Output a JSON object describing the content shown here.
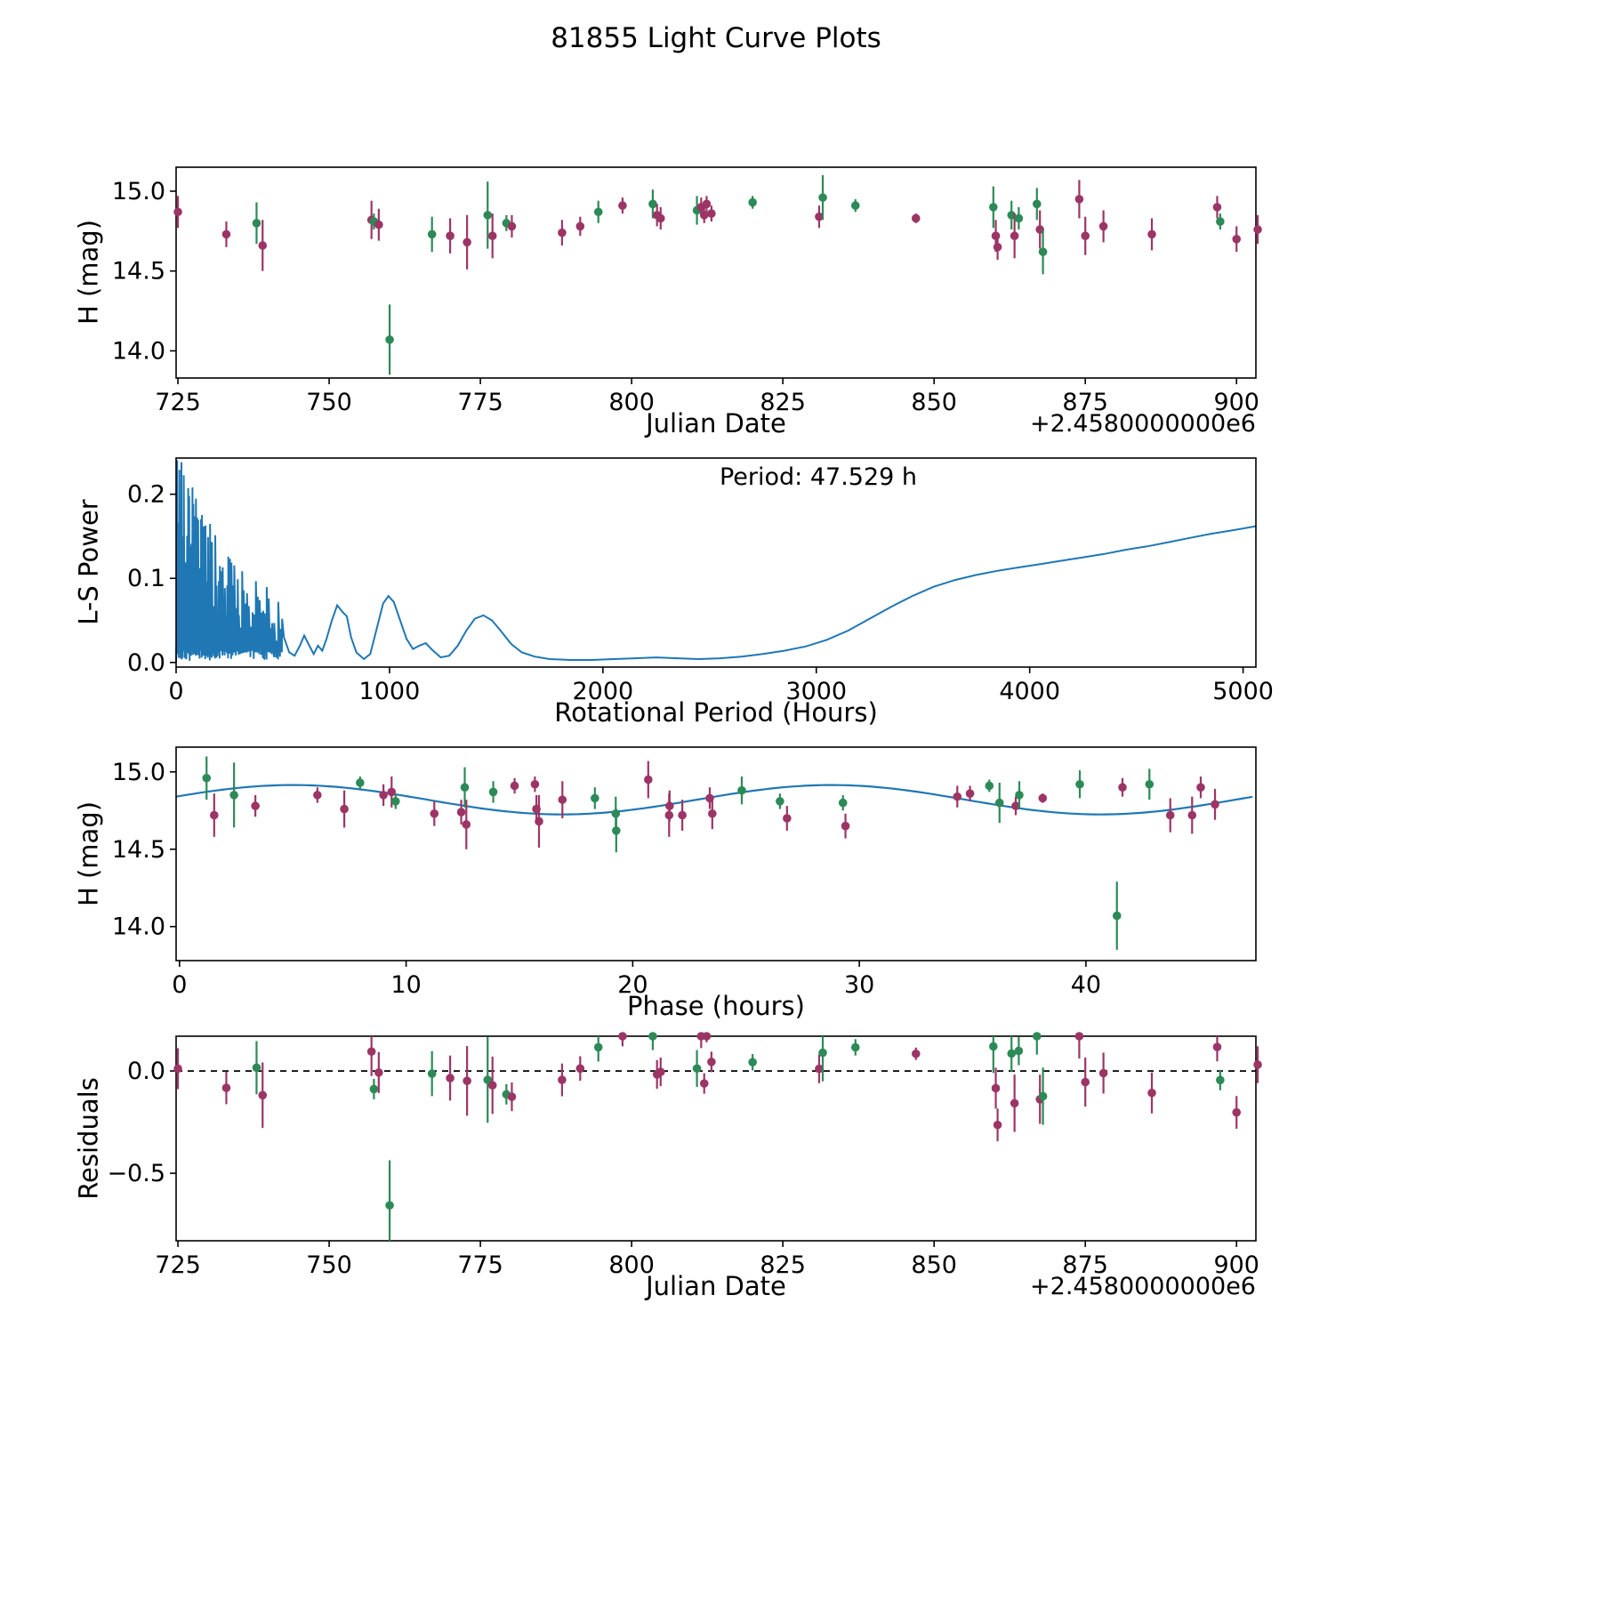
{
  "title": "81855 Light Curve Plots",
  "colors": {
    "green": "#2c8a57",
    "purple": "#9c3566",
    "curve_blue": "#1f77b4",
    "axis": "#000000"
  },
  "panels": {
    "lightcurve": {
      "ylabel": "H (mag)",
      "xlabel": "Julian Date",
      "x_offset_label": "+2.4580000000e6",
      "xlim": [
        724.7,
        903.2
      ],
      "ylim": [
        13.83,
        15.15
      ],
      "xticks": [
        725,
        750,
        775,
        800,
        825,
        850,
        875,
        900
      ],
      "xtick_labels": [
        "725",
        "750",
        "775",
        "800",
        "825",
        "850",
        "875",
        "900"
      ],
      "yticks": [
        14.0,
        14.5,
        15.0
      ],
      "ytick_labels": [
        "14.0",
        "14.5",
        "15.0"
      ]
    },
    "periodogram": {
      "ylabel": "L-S Power",
      "xlabel": "Rotational Period (Hours)",
      "annotation": "Period: 47.529 h",
      "xlim": [
        0,
        5060
      ],
      "ylim": [
        -0.0055,
        0.243
      ],
      "xticks": [
        0,
        1000,
        2000,
        3000,
        4000,
        5000
      ],
      "xtick_labels": [
        "0",
        "1000",
        "2000",
        "3000",
        "4000",
        "5000"
      ],
      "yticks": [
        0.0,
        0.1,
        0.2
      ],
      "ytick_labels": [
        "0.0",
        "0.1",
        "0.2"
      ]
    },
    "phase": {
      "ylabel": "H (mag)",
      "xlabel": "Phase (hours)",
      "xlim": [
        -0.15,
        47.5
      ],
      "ylim": [
        13.78,
        15.16
      ],
      "xticks": [
        0,
        10,
        20,
        30,
        40
      ],
      "xtick_labels": [
        "0",
        "10",
        "20",
        "30",
        "40"
      ],
      "yticks": [
        14.0,
        14.5,
        15.0
      ],
      "ytick_labels": [
        "14.0",
        "14.5",
        "15.0"
      ]
    },
    "residuals": {
      "ylabel": "Residuals",
      "xlabel": "Julian Date",
      "x_offset_label": "+2.4580000000e6",
      "xlim": [
        724.7,
        903.2
      ],
      "ylim": [
        -0.83,
        0.17
      ],
      "xticks": [
        725,
        750,
        775,
        800,
        825,
        850,
        875,
        900
      ],
      "xtick_labels": [
        "725",
        "750",
        "775",
        "800",
        "825",
        "850",
        "875",
        "900"
      ],
      "yticks": [
        0.0,
        -0.5
      ],
      "ytick_labels": [
        "0.0",
        "−0.5"
      ]
    }
  },
  "chart_data": {
    "type": "scatter",
    "object_id": "81855",
    "julian_date_offset": 2458000,
    "period_hours": 47.529,
    "model": {
      "mean_mag": 14.82,
      "amplitude_mag": 0.095,
      "phase_zero_rad": 0.2489,
      "epoch_jd": 724.61,
      "cycles_per_period": 2
    },
    "points_format": [
      "jd_minus_offset",
      "H_mag",
      "err_mag",
      "color g=green p=purple"
    ],
    "points": [
      [
        725.0,
        14.87,
        0.1,
        "p"
      ],
      [
        733.0,
        14.73,
        0.08,
        "p"
      ],
      [
        738.0,
        14.8,
        0.13,
        "g"
      ],
      [
        739.0,
        14.66,
        0.16,
        "p"
      ],
      [
        757.0,
        14.82,
        0.12,
        "p"
      ],
      [
        757.4,
        14.81,
        0.05,
        "g"
      ],
      [
        758.2,
        14.79,
        0.1,
        "p"
      ],
      [
        760.0,
        14.07,
        0.22,
        "g"
      ],
      [
        767.0,
        14.73,
        0.11,
        "g"
      ],
      [
        770.0,
        14.72,
        0.11,
        "p"
      ],
      [
        772.8,
        14.68,
        0.17,
        "p"
      ],
      [
        776.2,
        14.85,
        0.21,
        "g"
      ],
      [
        777.0,
        14.72,
        0.14,
        "p"
      ],
      [
        779.3,
        14.8,
        0.05,
        "g"
      ],
      [
        780.2,
        14.78,
        0.07,
        "p"
      ],
      [
        788.5,
        14.74,
        0.08,
        "p"
      ],
      [
        791.5,
        14.78,
        0.06,
        "p"
      ],
      [
        794.5,
        14.87,
        0.07,
        "g"
      ],
      [
        798.5,
        14.91,
        0.05,
        "p"
      ],
      [
        803.5,
        14.92,
        0.09,
        "g"
      ],
      [
        804.2,
        14.85,
        0.07,
        "p"
      ],
      [
        804.8,
        14.83,
        0.07,
        "p"
      ],
      [
        810.8,
        14.88,
        0.09,
        "g"
      ],
      [
        811.5,
        14.9,
        0.06,
        "p"
      ],
      [
        812.0,
        14.85,
        0.05,
        "p"
      ],
      [
        812.4,
        14.92,
        0.05,
        "p"
      ],
      [
        813.2,
        14.86,
        0.05,
        "p"
      ],
      [
        820.0,
        14.93,
        0.04,
        "g"
      ],
      [
        831.0,
        14.84,
        0.07,
        "p"
      ],
      [
        831.6,
        14.96,
        0.14,
        "g"
      ],
      [
        837.0,
        14.91,
        0.04,
        "g"
      ],
      [
        847.0,
        14.83,
        0.03,
        "p"
      ],
      [
        859.8,
        14.9,
        0.13,
        "g"
      ],
      [
        860.2,
        14.72,
        0.1,
        "p"
      ],
      [
        860.5,
        14.65,
        0.08,
        "p"
      ],
      [
        862.8,
        14.85,
        0.09,
        "g"
      ],
      [
        863.3,
        14.72,
        0.14,
        "p"
      ],
      [
        864.0,
        14.83,
        0.07,
        "g"
      ],
      [
        867.0,
        14.92,
        0.1,
        "g"
      ],
      [
        867.5,
        14.76,
        0.12,
        "p"
      ],
      [
        868.0,
        14.62,
        0.14,
        "g"
      ],
      [
        874.0,
        14.95,
        0.12,
        "p"
      ],
      [
        875.0,
        14.72,
        0.12,
        "p"
      ],
      [
        878.0,
        14.78,
        0.1,
        "p"
      ],
      [
        886.0,
        14.73,
        0.1,
        "p"
      ],
      [
        896.8,
        14.9,
        0.07,
        "p"
      ],
      [
        897.3,
        14.81,
        0.05,
        "g"
      ],
      [
        900.0,
        14.7,
        0.08,
        "p"
      ],
      [
        903.5,
        14.76,
        0.09,
        "p"
      ]
    ],
    "periodogram_noise": {
      "x_max": 505,
      "seed": 20,
      "envelope_start": 0.23,
      "envelope_decay": 330,
      "envelope_floor": 0.028
    },
    "periodogram_smooth": [
      [
        505,
        0.03
      ],
      [
        530,
        0.012
      ],
      [
        555,
        0.008
      ],
      [
        580,
        0.02
      ],
      [
        600,
        0.032
      ],
      [
        620,
        0.022
      ],
      [
        645,
        0.01
      ],
      [
        665,
        0.02
      ],
      [
        685,
        0.014
      ],
      [
        705,
        0.028
      ],
      [
        730,
        0.05
      ],
      [
        755,
        0.068
      ],
      [
        780,
        0.06
      ],
      [
        800,
        0.055
      ],
      [
        820,
        0.03
      ],
      [
        845,
        0.012
      ],
      [
        880,
        0.004
      ],
      [
        910,
        0.01
      ],
      [
        940,
        0.04
      ],
      [
        970,
        0.07
      ],
      [
        995,
        0.079
      ],
      [
        1020,
        0.072
      ],
      [
        1050,
        0.05
      ],
      [
        1080,
        0.028
      ],
      [
        1110,
        0.016
      ],
      [
        1140,
        0.02
      ],
      [
        1170,
        0.023
      ],
      [
        1200,
        0.015
      ],
      [
        1240,
        0.006
      ],
      [
        1280,
        0.008
      ],
      [
        1320,
        0.02
      ],
      [
        1360,
        0.038
      ],
      [
        1400,
        0.052
      ],
      [
        1440,
        0.056
      ],
      [
        1480,
        0.05
      ],
      [
        1520,
        0.038
      ],
      [
        1570,
        0.022
      ],
      [
        1620,
        0.012
      ],
      [
        1680,
        0.007
      ],
      [
        1750,
        0.004
      ],
      [
        1850,
        0.003
      ],
      [
        1950,
        0.003
      ],
      [
        2050,
        0.004
      ],
      [
        2150,
        0.005
      ],
      [
        2250,
        0.006
      ],
      [
        2350,
        0.005
      ],
      [
        2450,
        0.004
      ],
      [
        2550,
        0.005
      ],
      [
        2650,
        0.007
      ],
      [
        2750,
        0.01
      ],
      [
        2850,
        0.014
      ],
      [
        2950,
        0.019
      ],
      [
        3050,
        0.027
      ],
      [
        3150,
        0.038
      ],
      [
        3250,
        0.052
      ],
      [
        3350,
        0.066
      ],
      [
        3450,
        0.079
      ],
      [
        3550,
        0.09
      ],
      [
        3650,
        0.098
      ],
      [
        3750,
        0.104
      ],
      [
        3850,
        0.109
      ],
      [
        3950,
        0.113
      ],
      [
        4050,
        0.117
      ],
      [
        4150,
        0.121
      ],
      [
        4250,
        0.125
      ],
      [
        4350,
        0.129
      ],
      [
        4450,
        0.134
      ],
      [
        4550,
        0.138
      ],
      [
        4650,
        0.143
      ],
      [
        4750,
        0.148
      ],
      [
        4850,
        0.153
      ],
      [
        4950,
        0.157
      ],
      [
        5060,
        0.162
      ]
    ]
  }
}
